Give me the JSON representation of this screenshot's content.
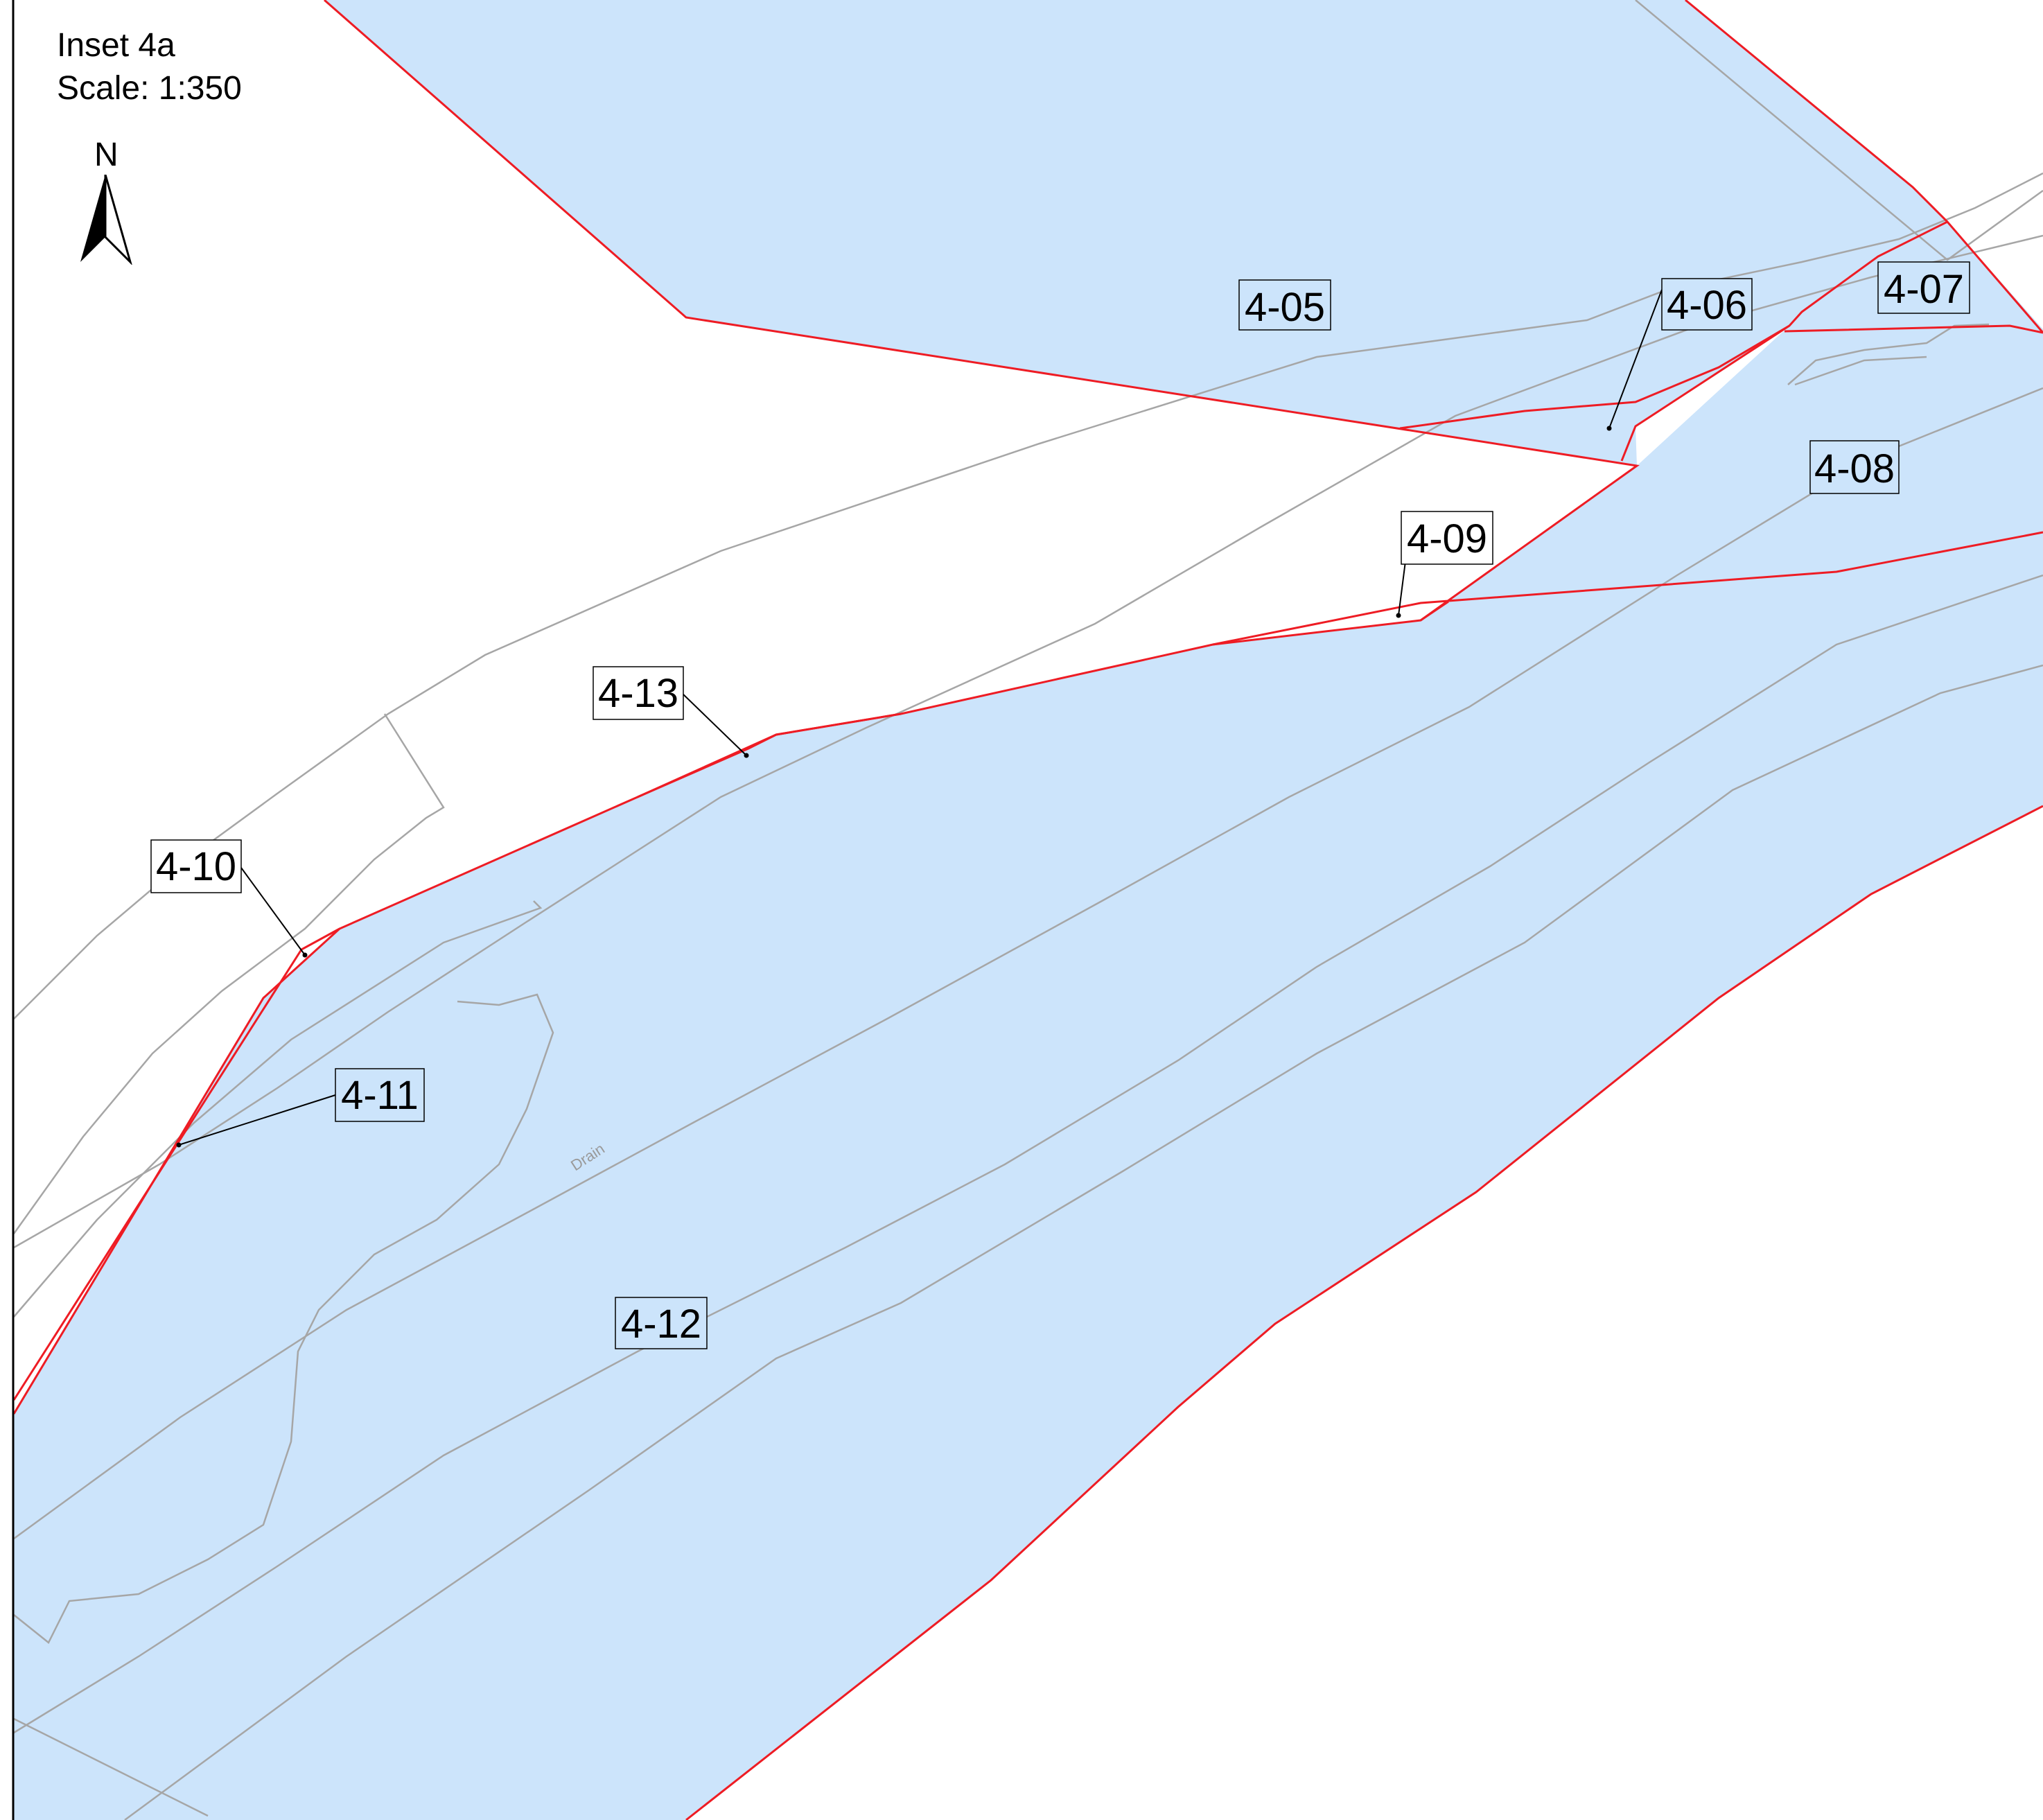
{
  "inset": {
    "title": "Inset 4a",
    "scale": "Scale: 1:350"
  },
  "north": {
    "letter": "N"
  },
  "feature_label": "Drain",
  "colors": {
    "parcel_fill": "#cce4fb",
    "parcel_boundary": "#ee1c24",
    "base_lines": "#a6a6a6",
    "label_box": "#000000"
  },
  "parcels": [
    "4-05",
    "4-06",
    "4-07",
    "4-08",
    "4-09",
    "4-10",
    "4-11",
    "4-12",
    "4-13"
  ]
}
